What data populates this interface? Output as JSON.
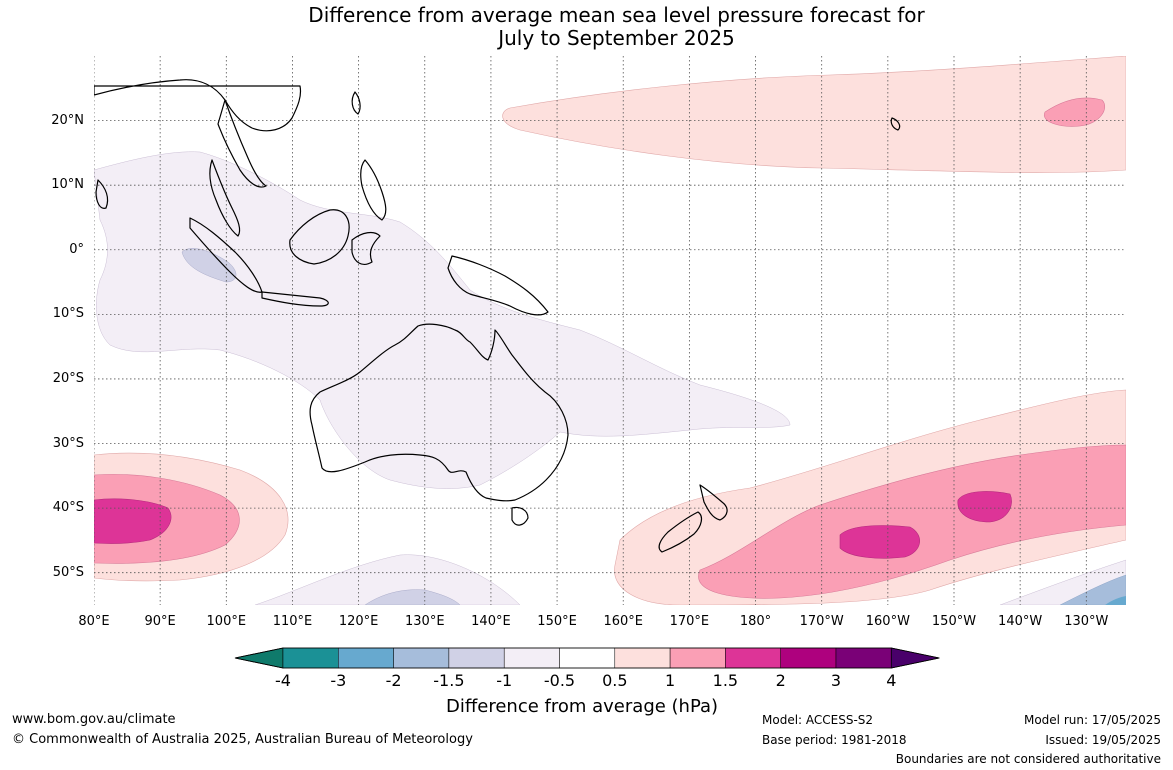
{
  "title": {
    "line1": "Difference from average mean sea level pressure forecast for",
    "line2": "July to September 2025"
  },
  "map": {
    "region": "Australia, Indian and Pacific Ocean",
    "lon_labels": [
      "80°E",
      "90°E",
      "100°E",
      "110°E",
      "120°E",
      "130°E",
      "140°E",
      "150°E",
      "160°E",
      "170°E",
      "180°",
      "170°W",
      "160°W",
      "150°W",
      "140°W",
      "130°W"
    ],
    "lat_labels": [
      "20°N",
      "10°N",
      "0°",
      "10°S",
      "20°S",
      "30°S",
      "40°S",
      "50°S"
    ],
    "lon_range": [
      80,
      236
    ],
    "lat_range": [
      -55,
      30
    ],
    "anomaly_regions": [
      {
        "name": "north-pacific-high",
        "band": "0.5 to 1",
        "color": "#fde0e0"
      },
      {
        "name": "north-pacific-core",
        "band": "1 to 1.5",
        "color": "#f8a1b9"
      },
      {
        "name": "maritime-continent-low",
        "band": "-1 to -0.5",
        "color": "#f3edf5"
      },
      {
        "name": "equatorial-indian-low",
        "band": "-1.5 to -1",
        "color": "#d0d3e6"
      },
      {
        "name": "southern-indian-high",
        "band": "1.5 to 2",
        "color": "#dd3497"
      },
      {
        "name": "tasman-pacific-high",
        "band": "1.5 to 2",
        "color": "#dd3497"
      },
      {
        "name": "southern-ocean-low",
        "band": "-2 to -1.5",
        "color": "#a6bddb"
      }
    ]
  },
  "colorbar": {
    "ticks": [
      "-4",
      "-3",
      "-2",
      "-1.5",
      "-1",
      "-0.5",
      "0.5",
      "1",
      "1.5",
      "2",
      "3",
      "4"
    ],
    "colors": [
      "#0f7a6b",
      "#1b9196",
      "#67a9cf",
      "#a6bddb",
      "#d0d1e6",
      "#f3eef6",
      "#ffffff",
      "#fde0dd",
      "#fa9fb5",
      "#dd3497",
      "#ae017e",
      "#7a0177",
      "#49006a"
    ],
    "label": "Difference from average (hPa)"
  },
  "footer": {
    "website": "www.bom.gov.au/climate",
    "copyright": "© Commonwealth of Australia 2025, Australian Bureau of Meteorology",
    "model": "Model: ACCESS-S2",
    "base_period": "Base period: 1981-2018",
    "model_run": "Model run: 17/05/2025",
    "issued": "Issued: 19/05/2025",
    "disclaimer": "Boundaries are not considered authoritative"
  }
}
